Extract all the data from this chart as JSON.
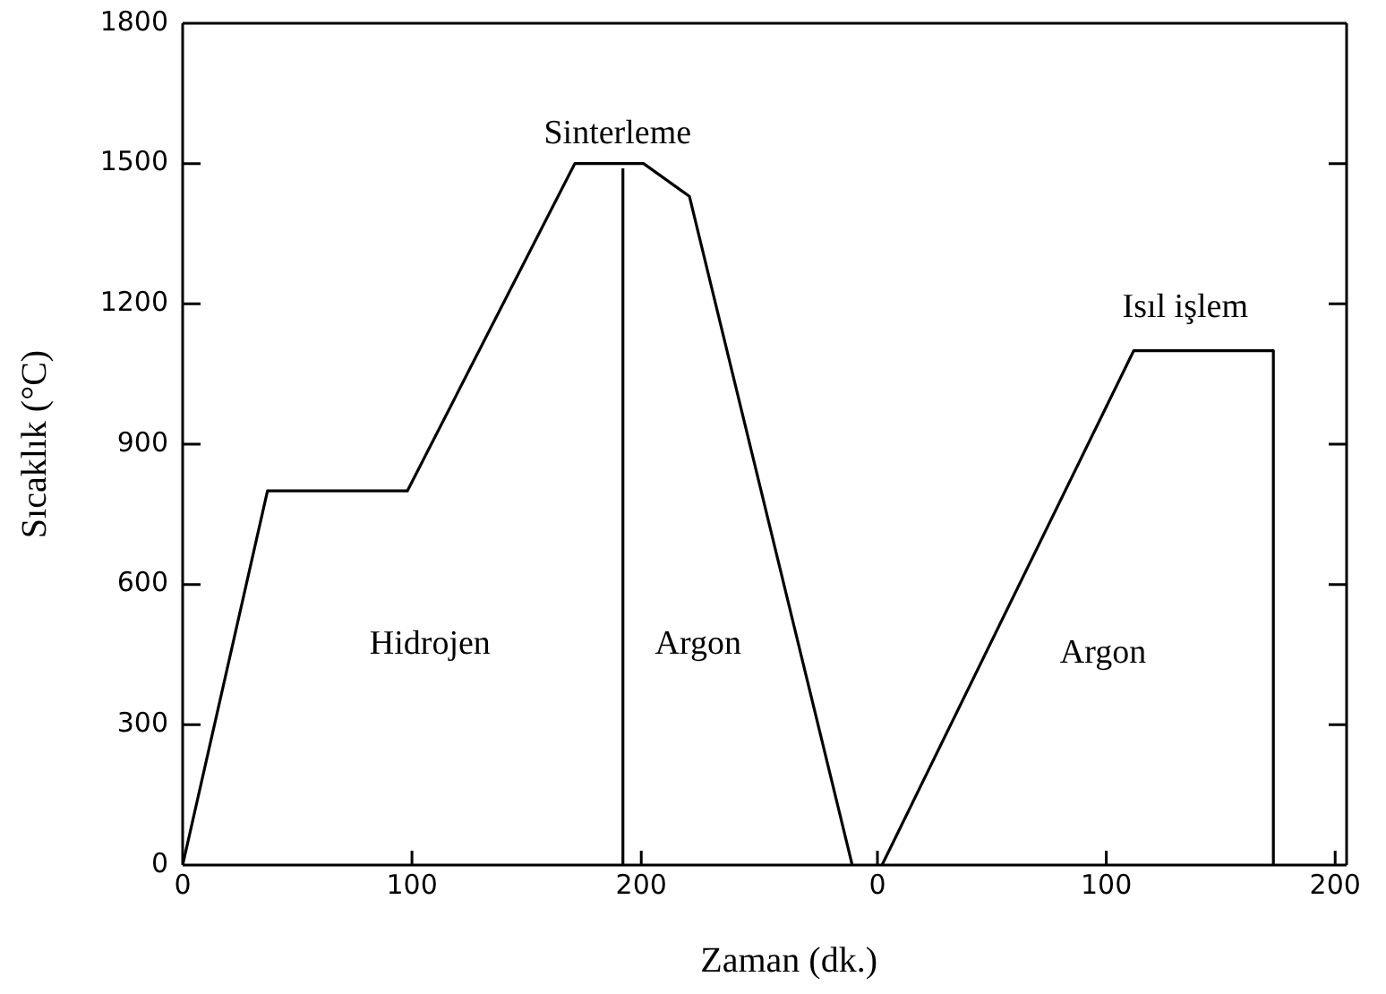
{
  "chart_data": [
    {
      "type": "line",
      "xlabel": "Zaman (dk.)",
      "ylabel": "Sıcaklık (°C)",
      "xlim": [
        0,
        303
      ],
      "ylim": [
        0,
        1800
      ],
      "xticks": [
        0,
        100,
        200
      ],
      "yticks": [
        0,
        300,
        600,
        900,
        1200,
        1500,
        1800
      ],
      "grid": false,
      "legend": false,
      "marker": "none",
      "line_style": "solid",
      "series": [
        {
          "color": "#000000",
          "x": [
            0,
            37,
            98,
            171,
            201,
            221,
            292
          ],
          "values": [
            0,
            800,
            800,
            1500,
            1500,
            1430,
            0
          ]
        },
        {
          "color": "#000000",
          "x": [
            192,
            192
          ],
          "values": [
            0,
            1490
          ]
        }
      ],
      "annotations": [
        "Sinterleme",
        "Hidrojen",
        "Argon"
      ]
    },
    {
      "type": "line",
      "tick_labels": "x",
      "xlim": [
        0,
        205
      ],
      "ylim": [
        0,
        1800
      ],
      "xticks": [
        0,
        100,
        200
      ],
      "yticks": [
        0,
        300,
        600,
        900,
        1200,
        1500,
        1800
      ],
      "grid": false,
      "legend": false,
      "marker": "none",
      "line_style": "solid",
      "series": [
        {
          "color": "#000000",
          "x": [
            2,
            112,
            173,
            173
          ],
          "values": [
            0,
            1100,
            1100,
            0
          ]
        }
      ],
      "annotations": [
        "Argon",
        "Isıl işlem"
      ]
    }
  ]
}
